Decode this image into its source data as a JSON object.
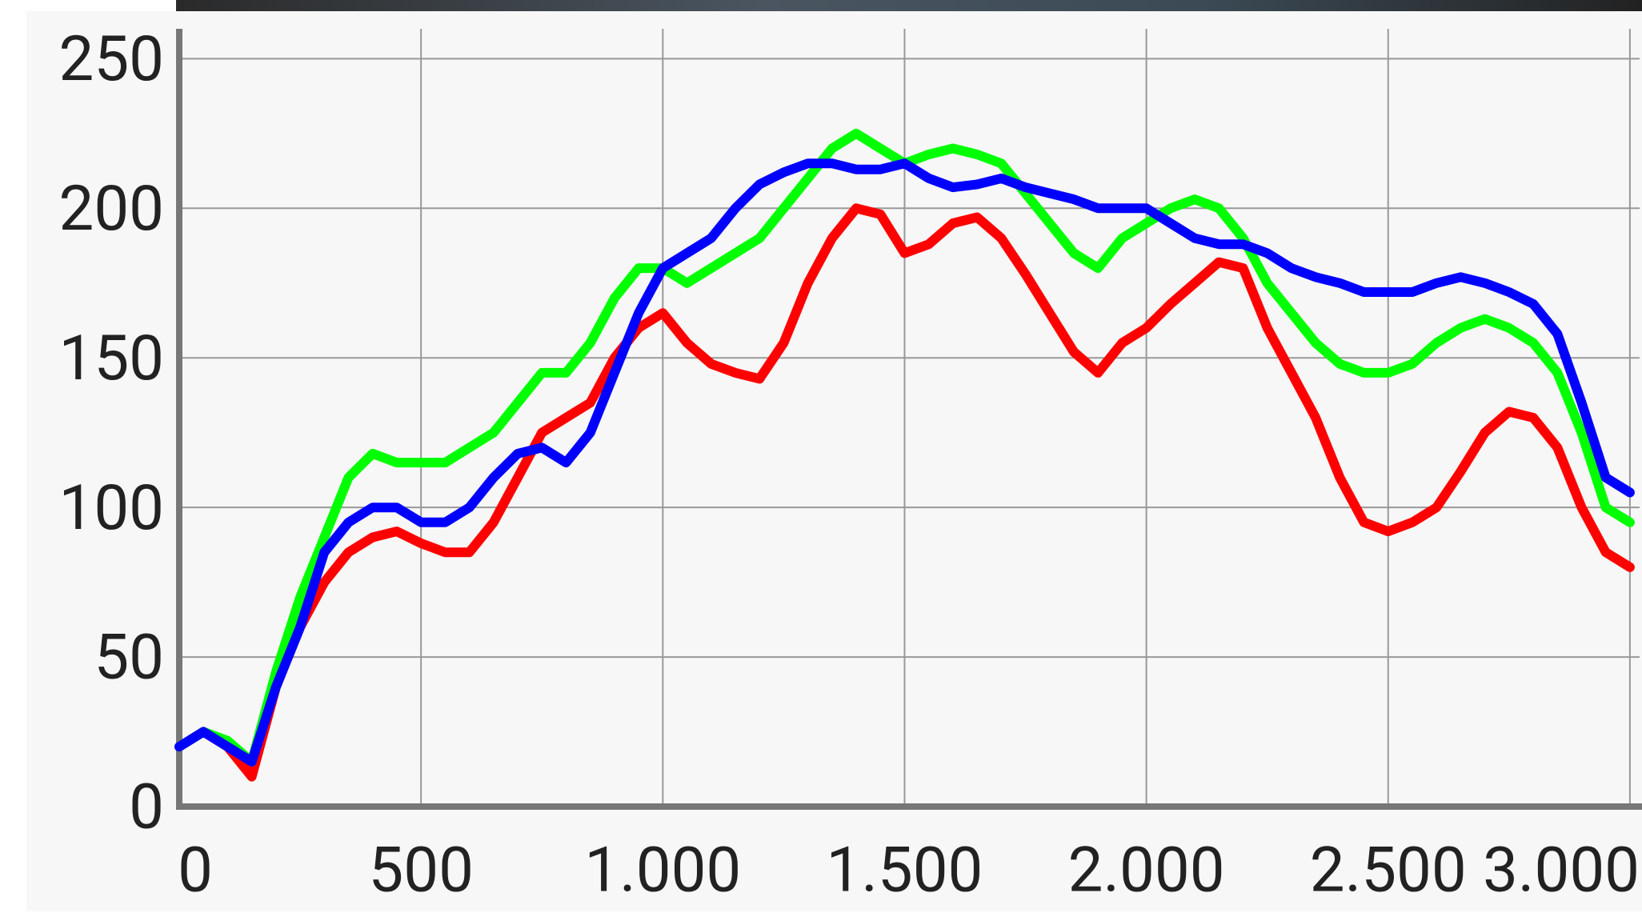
{
  "chart_data": {
    "type": "line",
    "x": [
      0,
      50,
      100,
      150,
      200,
      250,
      300,
      350,
      400,
      450,
      500,
      550,
      600,
      650,
      700,
      750,
      800,
      850,
      900,
      950,
      1000,
      1050,
      1100,
      1150,
      1200,
      1250,
      1300,
      1350,
      1400,
      1450,
      1500,
      1550,
      1600,
      1650,
      1700,
      1750,
      1800,
      1850,
      1900,
      1950,
      2000,
      2050,
      2100,
      2150,
      2200,
      2250,
      2300,
      2350,
      2400,
      2450,
      2500,
      2550,
      2600,
      2650,
      2700,
      2750,
      2800,
      2850,
      2900,
      2950,
      3000
    ],
    "series": [
      {
        "color": "#ff0000",
        "values": [
          20,
          25,
          20,
          10,
          40,
          60,
          75,
          85,
          90,
          92,
          88,
          85,
          85,
          95,
          110,
          125,
          130,
          135,
          150,
          160,
          165,
          155,
          148,
          145,
          143,
          155,
          175,
          190,
          200,
          198,
          185,
          188,
          195,
          197,
          190,
          178,
          165,
          152,
          145,
          155,
          160,
          168,
          175,
          182,
          180,
          160,
          145,
          130,
          110,
          95,
          92,
          95,
          100,
          112,
          125,
          132,
          130,
          120,
          100,
          85,
          80
        ]
      },
      {
        "color": "#00ff00",
        "values": [
          20,
          25,
          22,
          15,
          45,
          70,
          90,
          110,
          118,
          115,
          115,
          115,
          120,
          125,
          135,
          145,
          145,
          155,
          170,
          180,
          180,
          175,
          180,
          185,
          190,
          200,
          210,
          220,
          225,
          220,
          215,
          218,
          220,
          218,
          215,
          205,
          195,
          185,
          180,
          190,
          195,
          200,
          203,
          200,
          190,
          175,
          165,
          155,
          148,
          145,
          145,
          148,
          155,
          160,
          163,
          160,
          155,
          145,
          125,
          100,
          95
        ]
      },
      {
        "color": "#0000ff",
        "values": [
          20,
          25,
          20,
          15,
          40,
          60,
          85,
          95,
          100,
          100,
          95,
          95,
          100,
          110,
          118,
          120,
          115,
          125,
          145,
          165,
          180,
          185,
          190,
          200,
          208,
          212,
          215,
          215,
          213,
          213,
          215,
          210,
          207,
          208,
          210,
          207,
          205,
          203,
          200,
          200,
          200,
          195,
          190,
          188,
          188,
          185,
          180,
          177,
          175,
          172,
          172,
          172,
          175,
          177,
          175,
          172,
          168,
          158,
          135,
          110,
          105
        ]
      }
    ],
    "xlim": [
      0,
      3020
    ],
    "ylim": [
      0,
      260
    ],
    "xticks": [
      0,
      500,
      {
        "value": 1000,
        "label": "1.000"
      },
      {
        "value": 1500,
        "label": "1.500"
      },
      {
        "value": 2000,
        "label": "2.000"
      },
      {
        "value": 2500,
        "label": "2.500"
      },
      {
        "value": 3000,
        "label": "3.000"
      }
    ],
    "yticks": [
      0,
      50,
      100,
      150,
      200,
      250
    ],
    "grid": true
  }
}
